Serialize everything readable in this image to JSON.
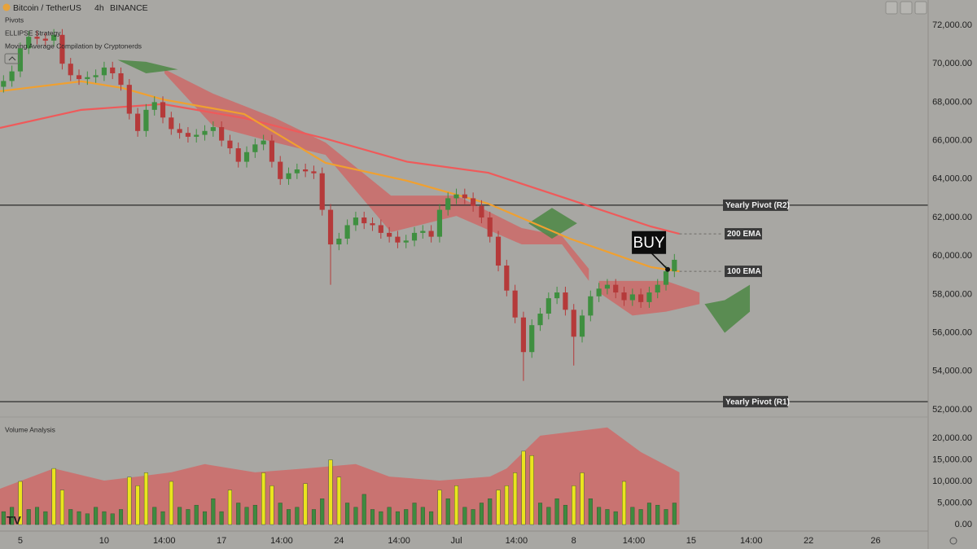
{
  "chart_data": [
    {
      "type": "candlestick",
      "title": "Bitcoin / TetherUS",
      "interval": "4h",
      "exchange": "BINANCE",
      "indicators": [
        "Pivots",
        "ELLIPSE Strategy",
        "Moving Average Compilation by Cryptonerds"
      ],
      "up_color": "#3f8f40",
      "down_color": "#b53a3a",
      "x": [
        4,
        4.5,
        5,
        5.5,
        6,
        6.5,
        7,
        7.5,
        8,
        8.5,
        9,
        9.5,
        10,
        10.5,
        11,
        11.5,
        12,
        12.5,
        13,
        13.5,
        14,
        14.5,
        15,
        15.5,
        16,
        16.5,
        17,
        17.5,
        18,
        18.5,
        19,
        19.5,
        20,
        20.5,
        21,
        21.5,
        22,
        22.5,
        23,
        23.5,
        24,
        24.5,
        25,
        25.5,
        26,
        26.5,
        27,
        27.5,
        28,
        28.5,
        29,
        29.5,
        30,
        30.5,
        31,
        31.5,
        32,
        32.5,
        33,
        33.5,
        34,
        34.5,
        35,
        35.5,
        36,
        36.5,
        37,
        37.5,
        38,
        38.5,
        39,
        39.5,
        40,
        40.5,
        41,
        41.5,
        42,
        42.5,
        43,
        43.5,
        44
      ],
      "open": [
        68800,
        69100,
        69600,
        70800,
        71400,
        71300,
        71200,
        71500,
        70000,
        69400,
        69200,
        69300,
        69400,
        69800,
        69500,
        68900,
        67400,
        66500,
        67600,
        68000,
        67200,
        66600,
        66400,
        66200,
        66300,
        66500,
        66700,
        66000,
        65600,
        64900,
        65400,
        65800,
        66000,
        64900,
        64000,
        64300,
        64500,
        64400,
        64300,
        62400,
        60600,
        60900,
        61600,
        62000,
        61700,
        61600,
        61200,
        61000,
        60700,
        60800,
        61200,
        61300,
        61000,
        62400,
        63000,
        63200,
        63000,
        62600,
        62000,
        61000,
        59500,
        58200,
        56800,
        55000,
        56400,
        57000,
        57800,
        58100,
        57200,
        55800,
        56900,
        57900,
        58300,
        58500,
        58100,
        57700,
        58000,
        57600,
        58100,
        58500,
        59200
      ],
      "high": [
        69400,
        69900,
        71100,
        71700,
        71700,
        71600,
        71800,
        71800,
        70300,
        69700,
        69600,
        69700,
        70100,
        70100,
        69800,
        69200,
        67700,
        67900,
        68300,
        68300,
        67500,
        66900,
        66700,
        66600,
        66800,
        67000,
        67000,
        66300,
        65900,
        65700,
        66100,
        66300,
        66300,
        65200,
        64600,
        64800,
        64800,
        64700,
        64600,
        62700,
        61200,
        61900,
        62300,
        62300,
        62000,
        61900,
        61500,
        61300,
        61100,
        61500,
        61600,
        61600,
        62700,
        63300,
        63500,
        63500,
        63300,
        62900,
        62300,
        61300,
        59800,
        58500,
        57100,
        56700,
        57300,
        58100,
        58400,
        58400,
        57500,
        57200,
        58200,
        58600,
        58800,
        58800,
        58400,
        58300,
        58300,
        58400,
        58800,
        59500,
        60100
      ],
      "low": [
        68500,
        68800,
        69300,
        70500,
        71000,
        70900,
        70900,
        69700,
        69100,
        68900,
        68900,
        69000,
        69100,
        69200,
        68600,
        67100,
        66200,
        66200,
        67300,
        66900,
        66300,
        66100,
        65900,
        65900,
        66000,
        66200,
        65700,
        65300,
        64600,
        64600,
        65100,
        65500,
        64600,
        63700,
        63700,
        64000,
        64100,
        64000,
        62100,
        58500,
        60300,
        60600,
        61300,
        61400,
        61300,
        60900,
        60700,
        60400,
        60400,
        60500,
        60900,
        60700,
        60700,
        62100,
        62700,
        62700,
        62300,
        61700,
        60700,
        59200,
        57900,
        56500,
        53500,
        54700,
        56100,
        56700,
        57500,
        56900,
        54300,
        55500,
        56600,
        57600,
        58000,
        57800,
        57400,
        57400,
        57300,
        57300,
        57800,
        58200,
        58900
      ],
      "close": [
        69100,
        69600,
        70800,
        71400,
        71300,
        71200,
        71500,
        70000,
        69400,
        69200,
        69300,
        69400,
        69800,
        69500,
        68900,
        67400,
        66500,
        67600,
        68000,
        67200,
        66600,
        66400,
        66200,
        66300,
        66500,
        66700,
        66000,
        65600,
        64900,
        65400,
        65800,
        66000,
        64900,
        64000,
        64300,
        64500,
        64400,
        64300,
        62400,
        60600,
        60900,
        61600,
        62000,
        61700,
        61600,
        61200,
        61000,
        60700,
        60800,
        61200,
        61300,
        61000,
        62400,
        63000,
        63200,
        63000,
        62600,
        62000,
        61000,
        59500,
        58200,
        56800,
        55000,
        56400,
        57000,
        57800,
        58100,
        57200,
        55800,
        56900,
        57900,
        58300,
        58500,
        58100,
        57700,
        58000,
        57600,
        58100,
        58500,
        59200,
        59800
      ],
      "series": [
        {
          "name": "200 EMA",
          "color": "#ef5a5a",
          "x": [
            3.79,
            8.64,
            13.5,
            18.35,
            23.2,
            28.06,
            32.9,
            37.77,
            42.6,
            44.3
          ],
          "values": [
            66660,
            67600,
            67900,
            67170,
            66100,
            64900,
            64330,
            62930,
            61530,
            61150
          ]
        },
        {
          "name": "100 EMA",
          "color": "#f0a030",
          "x": [
            3.79,
            8.64,
            11.07,
            13.5,
            18.35,
            23.2,
            28.06,
            32.9,
            37.77,
            42.6,
            44.3
          ],
          "values": [
            68570,
            69080,
            68740,
            68140,
            67380,
            64840,
            63910,
            62720,
            60900,
            59420,
            59200
          ]
        }
      ],
      "clouds": [
        {
          "color": "#cd6a68",
          "x": [
            13.6,
            16.5,
            20.2,
            23.2,
            27.1,
            31.0,
            34.9,
            37.3,
            38.9
          ],
          "top": [
            69710,
            68440,
            67170,
            65900,
            63140,
            63140,
            61450,
            61030,
            59330
          ],
          "bottom": [
            69500,
            66750,
            65900,
            65260,
            61240,
            62080,
            60600,
            60600,
            58700
          ]
        },
        {
          "color": "#4c8744",
          "x": [
            10.8,
            12.5,
            14.4
          ],
          "top": [
            70200,
            70100,
            69700
          ],
          "bottom": [
            70200,
            69500,
            69700
          ]
        },
        {
          "color": "#4c8744",
          "x": [
            35.3,
            36.7,
            38.2
          ],
          "top": [
            61700,
            62500,
            61700
          ],
          "bottom": [
            61700,
            60900,
            61700
          ]
        },
        {
          "color": "#cd6a68",
          "x": [
            39.5,
            41.5,
            43.5,
            45.5
          ],
          "top": [
            58700,
            58700,
            58700,
            58100
          ],
          "bottom": [
            58100,
            56900,
            57100,
            57500
          ]
        },
        {
          "color": "#4c8744",
          "x": [
            45.8,
            47.0,
            48.5
          ],
          "top": [
            57500,
            57700,
            58500
          ],
          "bottom": [
            57500,
            56000,
            57100
          ]
        }
      ],
      "levels": [
        {
          "label": "Yearly Pivot (R2)",
          "value": 62640
        },
        {
          "label": "Yearly Pivot (R1)",
          "value": 52420
        }
      ],
      "annotation": {
        "text": "BUY",
        "x": 43.6,
        "y": 59300
      },
      "xlim": [
        3.79,
        59.13
      ],
      "ylim": [
        51705,
        73313
      ],
      "xticks": [
        5,
        10,
        {
          "value": 13.583,
          "label": "14:00"
        },
        17,
        {
          "value": 20.583,
          "label": "14:00"
        },
        24,
        {
          "value": 27.583,
          "label": "14:00"
        },
        {
          "value": 31,
          "label": "Jul"
        },
        {
          "value": 34.583,
          "label": "14:00"
        },
        {
          "value": 38,
          "label": "8"
        },
        {
          "value": 41.583,
          "label": "14:00"
        },
        {
          "value": 45,
          "label": "15"
        },
        {
          "value": 48.583,
          "label": "14:00"
        },
        {
          "value": 52,
          "label": "22"
        },
        {
          "value": 56,
          "label": "26"
        }
      ],
      "yticks": [
        {
          "value": 52000,
          "label": "52,000.00"
        },
        {
          "value": 54000,
          "label": "54,000.00"
        },
        {
          "value": 56000,
          "label": "56,000.00"
        },
        {
          "value": 58000,
          "label": "58,000.00"
        },
        {
          "value": 60000,
          "label": "60,000.00"
        },
        {
          "value": 62000,
          "label": "62,000.00"
        },
        {
          "value": 64000,
          "label": "64,000.00"
        },
        {
          "value": 66000,
          "label": "66,000.00"
        },
        {
          "value": 68000,
          "label": "68,000.00"
        },
        {
          "value": 70000,
          "label": "70,000.00"
        },
        {
          "value": 72000,
          "label": "72,000.00"
        }
      ]
    },
    {
      "type": "bar",
      "title": "Volume Analysis",
      "series": [
        {
          "color": "#3f8a3f",
          "values": [
            3000,
            4000,
            null,
            3500,
            4000,
            3000,
            null,
            null,
            3500,
            3000,
            2500,
            4000,
            3000,
            2500,
            3500,
            null,
            null,
            null,
            4000,
            3000,
            null,
            4000,
            3500,
            4500,
            3000,
            6000,
            3000,
            null,
            5000,
            4000,
            4500,
            null,
            null,
            5000,
            3500,
            4000,
            null,
            3500,
            6000,
            null,
            null,
            5000,
            4000,
            7000,
            3500,
            3000,
            4000,
            3000,
            3500,
            5000,
            4000,
            3000,
            null,
            6000,
            null,
            4000,
            3500,
            5000,
            6000,
            null,
            null,
            null,
            null,
            null,
            5000,
            4000,
            6000,
            4500,
            null,
            null,
            6000,
            4000,
            3500,
            3000,
            null,
            4000,
            3500,
            5000,
            4500,
            3500,
            5000
          ]
        },
        {
          "color": "#eae41e",
          "values": [
            null,
            null,
            10000,
            null,
            null,
            null,
            13000,
            8000,
            null,
            null,
            null,
            null,
            null,
            null,
            null,
            11000,
            9000,
            12000,
            null,
            null,
            10000,
            null,
            null,
            null,
            null,
            null,
            null,
            8000,
            null,
            null,
            null,
            12000,
            9000,
            null,
            null,
            null,
            9500,
            null,
            null,
            15000,
            11000,
            null,
            null,
            null,
            null,
            null,
            null,
            null,
            null,
            null,
            null,
            null,
            8000,
            null,
            9000,
            null,
            null,
            null,
            null,
            8000,
            9000,
            12000,
            17000,
            16000,
            null,
            null,
            null,
            null,
            9000,
            12000,
            null,
            null,
            null,
            null,
            10000,
            null,
            null,
            null,
            null,
            null,
            null
          ]
        }
      ],
      "band": {
        "color": "#cf6a68",
        "x": [
          3.79,
          7,
          10,
          12,
          14,
          16,
          19,
          22,
          25,
          27,
          30,
          33,
          34,
          36,
          40,
          42,
          44.3
        ],
        "values": [
          8300,
          13000,
          10200,
          11100,
          12100,
          14000,
          12100,
          13000,
          14000,
          11100,
          10200,
          11100,
          13000,
          20600,
          22500,
          16800,
          12100
        ]
      },
      "ylim": [
        0,
        23400
      ],
      "yticks": [
        {
          "value": 0,
          "label": "0.00"
        },
        {
          "value": 5000,
          "label": "5,000.00"
        },
        {
          "value": 10000,
          "label": "10,000.00"
        },
        {
          "value": 15000,
          "label": "15,000.00"
        },
        {
          "value": 20000,
          "label": "20,000.00"
        }
      ]
    }
  ]
}
